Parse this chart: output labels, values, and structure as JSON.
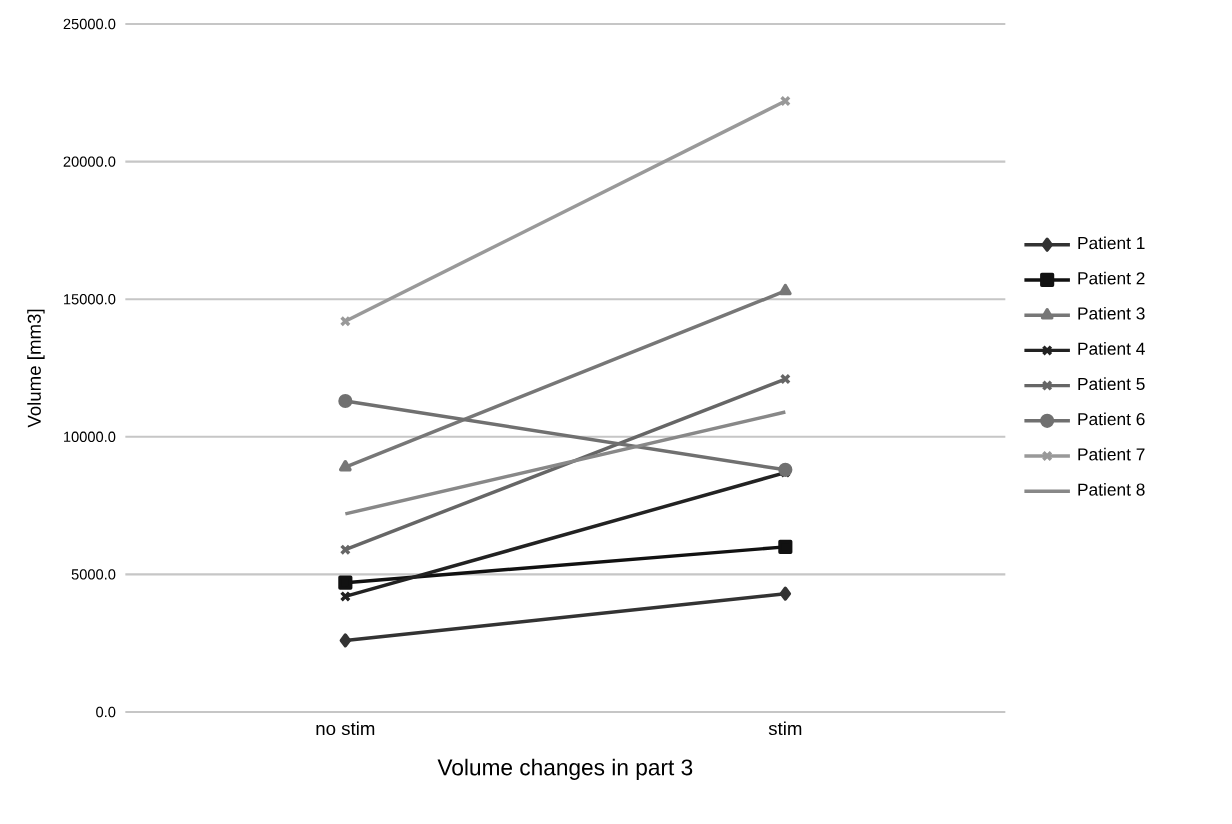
{
  "chart_data": {
    "type": "line",
    "xlabel": "Volume changes in part 3",
    "ylabel": "Volume [mm3]",
    "categories": [
      "no stim",
      "stim"
    ],
    "series": [
      {
        "name": "Patient 1",
        "color": "#333333",
        "marker": "diamond",
        "values": [
          2600,
          4300
        ]
      },
      {
        "name": "Patient 2",
        "color": "#111111",
        "marker": "square",
        "values": [
          4700,
          6000
        ]
      },
      {
        "name": "Patient 3",
        "color": "#777777",
        "marker": "triangle",
        "values": [
          8900,
          15300
        ]
      },
      {
        "name": "Patient 4",
        "color": "#222222",
        "marker": "cross",
        "values": [
          4200,
          8700
        ]
      },
      {
        "name": "Patient 5",
        "color": "#666666",
        "marker": "cross",
        "values": [
          5900,
          12100
        ]
      },
      {
        "name": "Patient 6",
        "color": "#707070",
        "marker": "circle",
        "values": [
          11300,
          8800
        ]
      },
      {
        "name": "Patient 7",
        "color": "#999999",
        "marker": "cross",
        "values": [
          14200,
          22200
        ]
      },
      {
        "name": "Patient 8",
        "color": "#888888",
        "marker": "none",
        "values": [
          7200,
          10900
        ]
      }
    ],
    "ylim": [
      0,
      25000
    ],
    "yticks": [
      {
        "value": 0,
        "label": "0.0"
      },
      {
        "value": 5000,
        "label": "5000.0"
      },
      {
        "value": 10000,
        "label": "10000.0"
      },
      {
        "value": 15000,
        "label": "15000.0"
      },
      {
        "value": 20000,
        "label": "20000.0"
      },
      {
        "value": 25000,
        "label": "25000.0"
      }
    ],
    "grid": "y",
    "legend": "right",
    "line_style": "solid"
  }
}
